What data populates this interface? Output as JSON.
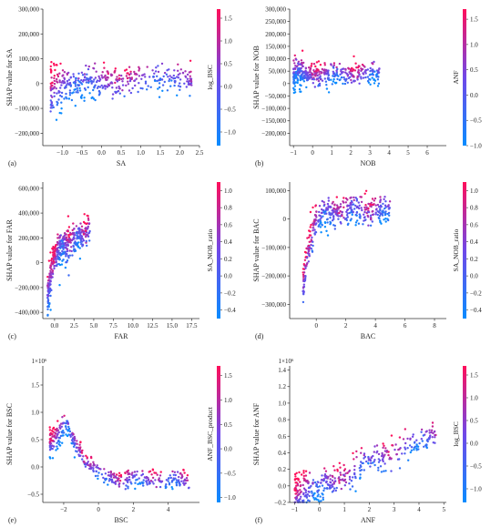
{
  "figure": {
    "colormap": [
      "#0a8cff",
      "#7048e8",
      "#ff0f5a"
    ],
    "charts": [
      "a",
      "b",
      "c",
      "d",
      "e",
      "f"
    ]
  },
  "chart_data": [
    {
      "id": "a",
      "panel_label": "(a)",
      "type": "scatter",
      "xlabel": "SA",
      "ylabel": "SHAP value for SA",
      "colorbar_label": "log_BSC",
      "xlim": [
        -1.5,
        2.5
      ],
      "ylim": [
        -250000,
        300000
      ],
      "xticks": [
        -1.0,
        -0.5,
        0.0,
        0.5,
        1.0,
        1.5,
        2.0,
        2.5
      ],
      "xtick_labels": [
        "−1.0",
        "−0.5",
        "0.0",
        "0.5",
        "1.0",
        "1.5",
        "2.0",
        "2.5"
      ],
      "yticks": [
        -200000,
        -100000,
        0,
        100000,
        200000,
        300000
      ],
      "ytick_labels": [
        "−200,000",
        "−100,000",
        "0",
        "100,000",
        "200,000",
        "300,000"
      ],
      "ytick_prefix": "",
      "clim": [
        -1.3,
        1.7
      ],
      "cticks": [
        -1.0,
        -0.5,
        0.0,
        0.5,
        1.0,
        1.5
      ],
      "ctick_labels": [
        "−1.0",
        "−0.5",
        "0.0",
        "0.5",
        "1.0",
        "1.5"
      ],
      "trend": [
        [
          -1.3,
          -30000
        ],
        [
          -1.1,
          -10000
        ],
        [
          -0.8,
          0
        ],
        [
          -0.4,
          0
        ],
        [
          0.0,
          5000
        ],
        [
          0.5,
          12000
        ],
        [
          1.0,
          15000
        ],
        [
          1.5,
          18000
        ],
        [
          2.0,
          22000
        ],
        [
          2.3,
          25000
        ]
      ],
      "spread": 30000
    },
    {
      "id": "b",
      "panel_label": "(b)",
      "type": "scatter",
      "xlabel": "NOB",
      "ylabel": "SHAP value for NOB",
      "colorbar_label": "ANF",
      "xlim": [
        -1.2,
        7.0
      ],
      "ylim": [
        -250000,
        300000
      ],
      "xticks": [
        -1,
        0,
        1,
        2,
        3,
        4,
        5,
        6
      ],
      "xtick_labels": [
        "−1",
        "0",
        "1",
        "2",
        "3",
        "4",
        "5",
        "6"
      ],
      "yticks": [
        -200000,
        -150000,
        -100000,
        -50000,
        0,
        50000,
        100000,
        150000,
        200000,
        250000,
        300000
      ],
      "ytick_labels": [
        "−200,000",
        "−150,000",
        "−100,000",
        "−50,000",
        "0",
        "50,000",
        "100,000",
        "150,000",
        "200,000",
        "250,000",
        "300,000"
      ],
      "ytick_prefix": "",
      "clim": [
        -1.0,
        1.7
      ],
      "cticks": [
        -1.0,
        -0.5,
        0.0,
        0.5,
        1.0,
        1.5
      ],
      "ctick_labels": [
        "−1.0",
        "−0.5",
        "0.0",
        "0.5",
        "1.0",
        "1.5"
      ],
      "trend": [
        [
          -1.0,
          30000
        ],
        [
          -0.8,
          45000
        ],
        [
          0.0,
          40000
        ],
        [
          1.0,
          35000
        ],
        [
          2.0,
          40000
        ],
        [
          3.0,
          40000
        ],
        [
          3.5,
          42000
        ]
      ],
      "spread": 20000
    },
    {
      "id": "c",
      "panel_label": "(c)",
      "type": "scatter",
      "xlabel": "FAR",
      "ylabel": "SHAP value for FAR",
      "colorbar_label": "SA_NOB_ratio",
      "xlim": [
        -1.5,
        18.5
      ],
      "ylim": [
        -450000,
        650000
      ],
      "xticks": [
        0.0,
        2.5,
        5.0,
        7.5,
        10.0,
        12.5,
        15.0,
        17.5
      ],
      "xtick_labels": [
        "0.0",
        "2.5",
        "5.0",
        "7.5",
        "10.0",
        "12.5",
        "15.0",
        "17.5"
      ],
      "yticks": [
        -400000,
        -200000,
        0,
        200000,
        400000,
        600000
      ],
      "ytick_labels": [
        "−400,000",
        "−200,000",
        "0",
        "200,000",
        "400,000",
        "600,000"
      ],
      "ytick_prefix": "",
      "clim": [
        -0.5,
        1.1
      ],
      "cticks": [
        -0.4,
        -0.2,
        0.0,
        0.2,
        0.4,
        0.6,
        0.8,
        1.0
      ],
      "ctick_labels": [
        "−0.4",
        "−0.2",
        "0.0",
        "0.2",
        "0.4",
        "0.6",
        "0.8",
        "1.0"
      ],
      "trend": [
        [
          -0.9,
          -330000
        ],
        [
          -0.6,
          -150000
        ],
        [
          -0.2,
          0
        ],
        [
          0.3,
          80000
        ],
        [
          1.0,
          130000
        ],
        [
          2.0,
          170000
        ],
        [
          3.0,
          210000
        ],
        [
          4.0,
          250000
        ],
        [
          4.5,
          270000
        ]
      ],
      "spread": 60000
    },
    {
      "id": "d",
      "panel_label": "(d)",
      "type": "scatter",
      "xlabel": "BAC",
      "ylabel": "SHAP value for BAC",
      "colorbar_label": "SA_NOB_ratio",
      "xlim": [
        -1.8,
        8.8
      ],
      "ylim": [
        -350000,
        130000
      ],
      "xticks": [
        0,
        2,
        4,
        6,
        8
      ],
      "xtick_labels": [
        "0",
        "2",
        "4",
        "6",
        "8"
      ],
      "yticks": [
        -300000,
        -200000,
        -100000,
        0,
        100000
      ],
      "ytick_labels": [
        "−300,000",
        "−200,000",
        "−100,000",
        "0",
        "100,000"
      ],
      "ytick_prefix": "",
      "clim": [
        -0.5,
        1.1
      ],
      "cticks": [
        -0.4,
        -0.2,
        0.0,
        0.2,
        0.4,
        0.6,
        0.8,
        1.0
      ],
      "ctick_labels": [
        "−0.4",
        "−0.2",
        "0.0",
        "0.2",
        "0.4",
        "0.6",
        "0.8",
        "1.0"
      ],
      "trend": [
        [
          -0.9,
          -250000
        ],
        [
          -0.6,
          -120000
        ],
        [
          -0.3,
          -60000
        ],
        [
          0.0,
          -10000
        ],
        [
          0.5,
          20000
        ],
        [
          1.0,
          30000
        ],
        [
          2.0,
          30000
        ],
        [
          3.0,
          30000
        ],
        [
          4.0,
          30000
        ],
        [
          5.0,
          30000
        ]
      ],
      "spread": 25000
    },
    {
      "id": "e",
      "panel_label": "(e)",
      "type": "scatter",
      "xlabel": "BSC",
      "ylabel": "SHAP value for BSC",
      "colorbar_label": "ANF_BSC_product",
      "xlim": [
        -3.2,
        5.8
      ],
      "ylim": [
        -0.65,
        1.85
      ],
      "xticks": [
        -2,
        0,
        2,
        4
      ],
      "xtick_labels": [
        "−2",
        "0",
        "2",
        "4"
      ],
      "yticks": [
        -0.5,
        0.0,
        0.5,
        1.0,
        1.5
      ],
      "ytick_labels": [
        "−0.5",
        "0.0",
        "0.5",
        "1.0",
        "1.5"
      ],
      "ytick_prefix": "1×10⁶",
      "clim": [
        -1.1,
        1.7
      ],
      "cticks": [
        -1.0,
        -0.5,
        0.0,
        0.5,
        1.0,
        1.5
      ],
      "ctick_labels": [
        "−1.0",
        "−0.5",
        "0.0",
        "0.5",
        "1.0",
        "1.5"
      ],
      "trend": [
        [
          -2.8,
          0.45
        ],
        [
          -2.3,
          0.6
        ],
        [
          -1.8,
          0.8
        ],
        [
          -1.5,
          0.5
        ],
        [
          -1.0,
          0.25
        ],
        [
          -0.5,
          0.05
        ],
        [
          0.0,
          -0.12
        ],
        [
          0.5,
          -0.2
        ],
        [
          1.0,
          -0.22
        ],
        [
          2.0,
          -0.22
        ],
        [
          3.0,
          -0.23
        ],
        [
          4.0,
          -0.25
        ],
        [
          5.2,
          -0.27
        ]
      ],
      "spread": 0.08
    },
    {
      "id": "f",
      "panel_label": "(f)",
      "type": "scatter",
      "xlabel": "ANF",
      "ylabel": "SHAP value for ANF",
      "colorbar_label": "log_BSC",
      "xlim": [
        -1.2,
        5.1
      ],
      "ylim": [
        -0.2,
        1.45
      ],
      "xticks": [
        -1,
        0,
        1,
        2,
        3,
        4,
        5
      ],
      "xtick_labels": [
        "−1",
        "0",
        "1",
        "2",
        "3",
        "4",
        "5"
      ],
      "yticks": [
        -0.2,
        0.0,
        0.2,
        0.4,
        0.6,
        0.8,
        1.0,
        1.2,
        1.4
      ],
      "ytick_labels": [
        "−0.2",
        "0.0",
        "0.2",
        "0.4",
        "0.6",
        "0.8",
        "1.0",
        "1.2",
        "1.4"
      ],
      "ytick_prefix": "1×10⁶",
      "clim": [
        -1.3,
        1.7
      ],
      "cticks": [
        -1.0,
        -0.5,
        0.0,
        0.5,
        1.0,
        1.5
      ],
      "ctick_labels": [
        "−1.0",
        "−0.5",
        "0.0",
        "0.5",
        "1.0",
        "1.5"
      ],
      "trend": [
        [
          -1.0,
          -0.12
        ],
        [
          -0.5,
          -0.08
        ],
        [
          0.0,
          -0.02
        ],
        [
          0.5,
          0.05
        ],
        [
          1.0,
          0.12
        ],
        [
          1.5,
          0.2
        ],
        [
          2.0,
          0.28
        ],
        [
          2.5,
          0.35
        ],
        [
          3.0,
          0.42
        ],
        [
          3.5,
          0.5
        ],
        [
          4.0,
          0.55
        ],
        [
          4.7,
          0.62
        ]
      ],
      "spread": 0.08
    }
  ]
}
